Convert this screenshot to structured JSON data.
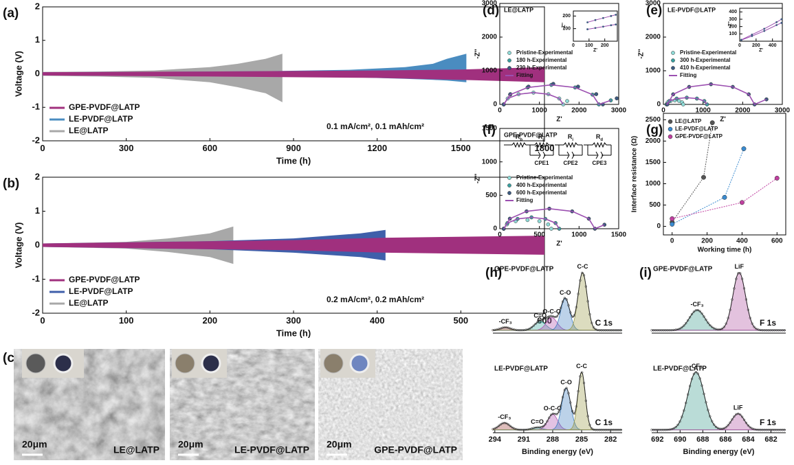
{
  "chart_data": [
    {
      "type": "band",
      "label": "(a)",
      "xlabel": "Time (h)",
      "ylabel": "Voltage (V)",
      "xlim": [
        0,
        1800
      ],
      "xticks": [
        0,
        300,
        600,
        900,
        1200,
        1500,
        1800
      ],
      "ylim": [
        -2,
        2
      ],
      "yticks": [
        -2,
        -1,
        0,
        1,
        2
      ],
      "annotation": "0.1 mA/cm², 0.1 mAh/cm²",
      "series": [
        {
          "name": "GPE-PVDF@LATP",
          "color": "#a0307e",
          "x": [
            0,
            600,
            1200,
            1500,
            1800
          ],
          "upper": [
            0.05,
            0.07,
            0.1,
            0.13,
            0.2
          ],
          "lower": [
            -0.05,
            -0.08,
            -0.12,
            -0.18,
            -0.25
          ]
        },
        {
          "name": "LE-PVDF@LATP",
          "color": "#4a8cc0",
          "x": [
            0,
            400,
            800,
            1100,
            1300,
            1400,
            1450,
            1520
          ],
          "upper": [
            0.05,
            0.06,
            0.08,
            0.12,
            0.2,
            0.3,
            0.45,
            0.6
          ],
          "lower": [
            -0.05,
            -0.06,
            -0.08,
            -0.1,
            -0.15,
            -0.18,
            -0.2,
            -0.25
          ]
        },
        {
          "name": "LE@LATP",
          "color": "#a8a8a8",
          "x": [
            0,
            200,
            400,
            600,
            700,
            800,
            860
          ],
          "upper": [
            0.06,
            0.07,
            0.1,
            0.2,
            0.3,
            0.45,
            0.6
          ],
          "lower": [
            -0.06,
            -0.08,
            -0.12,
            -0.25,
            -0.4,
            -0.58,
            -0.85
          ]
        }
      ]
    },
    {
      "type": "band",
      "label": "(b)",
      "xlabel": "Time (h)",
      "ylabel": "Voltage (V)",
      "xlim": [
        0,
        600
      ],
      "xticks": [
        0,
        100,
        200,
        300,
        400,
        500,
        600
      ],
      "ylim": [
        -2,
        2
      ],
      "yticks": [
        -2,
        -1,
        0,
        1,
        2
      ],
      "annotation": "0.2 mA/cm², 0.2 mAh/cm²",
      "series": [
        {
          "name": "GPE-PVDF@LATP",
          "color": "#a0307e",
          "x": [
            0,
            300,
            410,
            600
          ],
          "upper": [
            0.05,
            0.15,
            0.22,
            0.28
          ],
          "lower": [
            -0.05,
            -0.15,
            -0.22,
            -0.28
          ]
        },
        {
          "name": "LE-PVDF@LATP",
          "color": "#3f5faa",
          "x": [
            0,
            200,
            300,
            380,
            410
          ],
          "upper": [
            0.05,
            0.12,
            0.2,
            0.35,
            0.45
          ],
          "lower": [
            -0.05,
            -0.12,
            -0.22,
            -0.35,
            -0.45
          ]
        },
        {
          "name": "LE@LATP",
          "color": "#a8a8a8",
          "x": [
            0,
            100,
            150,
            200,
            228
          ],
          "upper": [
            0.05,
            0.1,
            0.2,
            0.35,
            0.55
          ],
          "lower": [
            -0.05,
            -0.1,
            -0.2,
            -0.35,
            -0.55
          ]
        }
      ]
    },
    {
      "type": "nyquist",
      "label": "(d)",
      "title": "LE@LATP",
      "xlabel": "Z'",
      "ylabel": "-Z''",
      "xlim": [
        0,
        3000
      ],
      "xticks": [
        0,
        1000,
        2000,
        3000
      ],
      "ylim": [
        0,
        3000
      ],
      "yticks": [
        0,
        1000,
        2000,
        3000
      ],
      "series": [
        {
          "name": "Pristine-Experimental",
          "color": "#8fdad6",
          "mode": "markers",
          "x": [
            100,
            200,
            475,
            850,
            1225,
            1500,
            1600,
            1700
          ],
          "values": [
            0,
            175,
            303,
            350,
            303,
            175,
            0,
            100
          ]
        },
        {
          "name": "180 h-Experimental",
          "color": "#3aa0a0",
          "mode": "markers",
          "x": [
            100,
            261,
            700,
            1300,
            1900,
            2339,
            2500,
            2800
          ],
          "values": [
            0,
            290,
            502,
            580,
            502,
            290,
            0,
            120
          ]
        },
        {
          "name": "230 h-Experimental",
          "color": "#3d5a80",
          "mode": "markers",
          "x": [
            100,
            267,
            725,
            1350,
            1975,
            2433,
            2600,
            2950
          ],
          "values": [
            0,
            305,
            528,
            610,
            528,
            305,
            0,
            180
          ]
        },
        {
          "name": "Fitting",
          "color": "#9b4fb0",
          "mode": "line",
          "x": [
            100,
            261,
            700,
            1300,
            1900,
            2339,
            2500,
            2800,
            null,
            100,
            200,
            475,
            850,
            1225,
            1500,
            1600
          ],
          "values": [
            0,
            290,
            502,
            580,
            502,
            290,
            0,
            120,
            null,
            0,
            175,
            303,
            350,
            303,
            175,
            0
          ]
        }
      ],
      "inset": {
        "xlabel": "Z'",
        "ylabel": "-Z''",
        "xlim": [
          0,
          280
        ],
        "xticks": [
          0,
          100,
          200
        ],
        "ylim": [
          0,
          240
        ],
        "yticks": [
          100,
          200
        ],
        "series": [
          {
            "color": "#9b4fb0",
            "x": [
              90,
              140,
              190,
              240,
              270
            ],
            "values": [
              150,
              168,
              184,
              200,
              210
            ]
          },
          {
            "color": "#9b4fb0",
            "x": [
              90,
              140,
              190,
              240,
              270
            ],
            "values": [
              95,
              105,
              116,
              127,
              133
            ]
          }
        ]
      }
    },
    {
      "type": "nyquist",
      "label": "(e)",
      "title": "LE-PVDF@LATP",
      "xlabel": "Z'",
      "ylabel": "-Z''",
      "xlim": [
        0,
        3000
      ],
      "xticks": [
        0,
        1000,
        2000,
        3000
      ],
      "ylim": [
        0,
        3000
      ],
      "yticks": [
        0,
        1000,
        2000,
        3000
      ],
      "series": [
        {
          "name": "Pristine-Experimental",
          "color": "#8fdad6",
          "mode": "markers",
          "x": [
            80,
            108,
            185,
            290,
            395,
            472,
            500
          ],
          "values": [
            0,
            60,
            104,
            120,
            104,
            60,
            0
          ]
        },
        {
          "name": "300 h-Experimental",
          "color": "#3aa0a0",
          "mode": "markers",
          "x": [
            80,
            148,
            335,
            590,
            845,
            1032,
            1100
          ],
          "values": [
            0,
            100,
            173,
            200,
            173,
            100,
            0
          ]
        },
        {
          "name": "410 h-Experimental",
          "color": "#3d5a80",
          "mode": "markers",
          "x": [
            100,
            247,
            650,
            1200,
            1750,
            2153,
            2300,
            2600
          ],
          "values": [
            0,
            300,
            520,
            600,
            520,
            300,
            0,
            150
          ]
        },
        {
          "name": "Fitting",
          "color": "#9b4fb0",
          "mode": "line",
          "x": [
            100,
            247,
            650,
            1200,
            1750,
            2153,
            2300,
            2600,
            null,
            80,
            148,
            335,
            590,
            845,
            1032,
            1100
          ],
          "values": [
            0,
            300,
            520,
            600,
            520,
            300,
            0,
            150,
            null,
            0,
            100,
            173,
            200,
            173,
            100,
            0
          ]
        }
      ],
      "inset": {
        "xlabel": "Z'",
        "ylabel": "-Z''",
        "xlim": [
          0,
          520
        ],
        "xticks": [
          0,
          200,
          400
        ],
        "ylim": [
          0,
          450
        ],
        "yticks": [
          100,
          200,
          300,
          400
        ],
        "series": [
          {
            "color": "#9b4fb0",
            "x": [
              20,
              150,
              300,
              450,
              510
            ],
            "values": [
              20,
              90,
              170,
              260,
              300
            ]
          },
          {
            "color": "#9b4fb0",
            "x": [
              20,
              150,
              300,
              450,
              510
            ],
            "values": [
              15,
              70,
              140,
              220,
              250
            ]
          }
        ]
      }
    },
    {
      "type": "nyquist",
      "label": "(f)",
      "title": "GPE-PVDF@LATP",
      "xlabel": "Z'",
      "ylabel": "-Z''",
      "xlim": [
        0,
        1500
      ],
      "xticks": [
        0,
        500,
        1000,
        1500
      ],
      "ylim": [
        0,
        1500
      ],
      "yticks": [
        0,
        500,
        1000,
        1500
      ],
      "series": [
        {
          "name": "Pristine-Experimental",
          "color": "#8fdad6",
          "mode": "markers",
          "x": [
            50,
            90,
            200,
            350,
            500,
            610,
            650
          ],
          "values": [
            0,
            65,
            113,
            130,
            113,
            65,
            0
          ]
        },
        {
          "name": "400 h-Experimental",
          "color": "#3aa0a0",
          "mode": "markers",
          "x": [
            50,
            97,
            225,
            400,
            575,
            703,
            750
          ],
          "values": [
            0,
            85,
            147,
            170,
            147,
            85,
            0
          ]
        },
        {
          "name": "600 h-Experimental",
          "color": "#3d5a80",
          "mode": "markers",
          "x": [
            50,
            127,
            338,
            625,
            913,
            1123,
            1200,
            1320
          ],
          "values": [
            0,
            150,
            260,
            300,
            260,
            150,
            0,
            60
          ]
        },
        {
          "name": "Fitting",
          "color": "#9b4fb0",
          "mode": "line",
          "x": [
            50,
            127,
            338,
            625,
            913,
            1123,
            1200,
            1320,
            null,
            50,
            97,
            225,
            400,
            575,
            703,
            750
          ],
          "values": [
            0,
            150,
            260,
            300,
            260,
            150,
            0,
            60,
            null,
            0,
            85,
            147,
            170,
            147,
            85,
            0
          ]
        }
      ],
      "circuit": {
        "resistors": [
          {
            "symbol": "R",
            "sub": "b"
          },
          {
            "symbol": "R",
            "sub": "g"
          },
          {
            "symbol": "R",
            "sub": "i"
          },
          {
            "symbol": "R",
            "sub": "d"
          }
        ],
        "cpes": [
          "CPE1",
          "CPE2",
          "CPE3"
        ]
      }
    },
    {
      "type": "line",
      "label": "(g)",
      "xlabel": "Working time (h)",
      "ylabel": "Interface resistance (Ω)",
      "xlim": [
        -50,
        650
      ],
      "xticks": [
        0,
        200,
        400,
        600
      ],
      "ylim": [
        -200,
        2650
      ],
      "yticks": [
        0,
        500,
        1000,
        1500,
        2000,
        2500
      ],
      "legend": "upper left",
      "series": [
        {
          "name": "LE@LATP",
          "color": "#555555",
          "x": [
            0,
            180,
            230
          ],
          "values": [
            100,
            1150,
            2430
          ]
        },
        {
          "name": "LE-PVDF@LATP",
          "color": "#3a8bd0",
          "x": [
            0,
            300,
            410
          ],
          "values": [
            50,
            680,
            1820
          ]
        },
        {
          "name": "GPE-PVDF@LATP",
          "color": "#c040a0",
          "x": [
            0,
            400,
            600
          ],
          "values": [
            180,
            560,
            1130
          ]
        }
      ]
    },
    {
      "type": "xps",
      "label": "(h)",
      "title": "GPE-PVDF@LATP",
      "core_level": "C 1s",
      "xlim": [
        294.2,
        280.8
      ],
      "ylim": [
        -0.05,
        1.2
      ],
      "peaks": [
        {
          "label": "-CF₃",
          "color": "#a0413c",
          "center": 292.9,
          "height": 0.05,
          "fwhm": 1.2
        },
        {
          "label": "C=O",
          "color": "#3aa8a0",
          "center": 289.3,
          "height": 0.15,
          "fwhm": 1.4
        },
        {
          "label": "O-C-O",
          "color": "#b04fb0",
          "center": 288.1,
          "height": 0.22,
          "fwhm": 1.3
        },
        {
          "label": "C-O",
          "color": "#3f7fc0",
          "center": 286.7,
          "height": 0.55,
          "fwhm": 1.1
        },
        {
          "label": "C-C",
          "color": "#9a9a48",
          "center": 284.9,
          "height": 1.0,
          "fwhm": 1.1
        }
      ]
    },
    {
      "type": "xps",
      "title": "LE-PVDF@LATP",
      "core_level": "C 1s",
      "xlabel": "Binding energy (eV)",
      "xlim": [
        294.2,
        280.8
      ],
      "xticks": [
        294,
        291,
        288,
        285,
        282
      ],
      "ylim": [
        -0.05,
        1.2
      ],
      "peaks": [
        {
          "label": "-CF₃",
          "color": "#a0413c",
          "center": 293.0,
          "height": 0.12,
          "fwhm": 1.3
        },
        {
          "label": "C=O",
          "color": "#3aa8a0",
          "center": 289.6,
          "height": 0.04,
          "fwhm": 1.2
        },
        {
          "label": "O-C-O",
          "color": "#b04fb0",
          "center": 288.0,
          "height": 0.27,
          "fwhm": 1.2
        },
        {
          "label": "C-O",
          "color": "#3f7fc0",
          "center": 286.6,
          "height": 0.72,
          "fwhm": 1.1
        },
        {
          "label": "C-C",
          "color": "#9a9a48",
          "center": 285.0,
          "height": 1.0,
          "fwhm": 0.9
        }
      ]
    },
    {
      "type": "xps",
      "label": "(i)",
      "title": "GPE-PVDF@LATP",
      "core_level": "F 1s",
      "xlim": [
        692.5,
        680.7
      ],
      "ylim": [
        -0.05,
        1.2
      ],
      "peaks": [
        {
          "label": "-CF₃",
          "color": "#3a9a8c",
          "center": 688.5,
          "height": 0.35,
          "fwhm": 1.6
        },
        {
          "label": "LiF",
          "color": "#b050a0",
          "center": 684.8,
          "height": 1.0,
          "fwhm": 1.3
        }
      ]
    },
    {
      "type": "xps",
      "title": "LE-PVDF@LATP",
      "core_level": "F 1s",
      "xlabel": "Binding energy (eV)",
      "xlim": [
        692.5,
        680.7
      ],
      "xticks": [
        692,
        690,
        688,
        686,
        684,
        682
      ],
      "ylim": [
        -0.05,
        1.2
      ],
      "peaks": [
        {
          "label": "-CF₃",
          "color": "#3a9a8c",
          "center": 688.6,
          "height": 1.0,
          "fwhm": 1.7
        },
        {
          "label": "LiF",
          "color": "#b050a0",
          "center": 684.9,
          "height": 0.28,
          "fwhm": 1.3
        }
      ]
    }
  ],
  "sem_panel": {
    "label": "(c)",
    "images": [
      {
        "caption": "LE@LATP",
        "scale": "20μm"
      },
      {
        "caption": "LE-PVDF@LATP",
        "scale": "20μm"
      },
      {
        "caption": "GPE-PVDF@LATP",
        "scale": "20μm"
      }
    ]
  }
}
